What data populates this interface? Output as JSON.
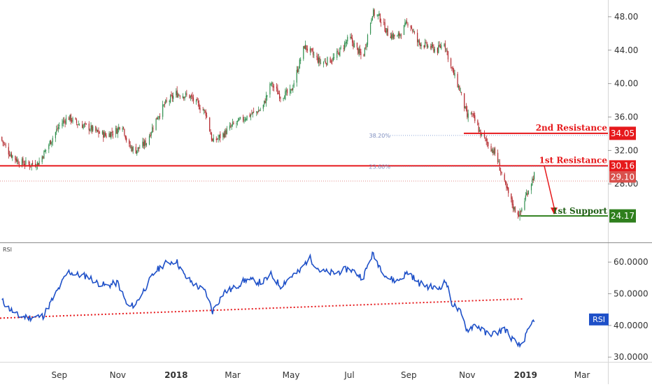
{
  "chart_data": [
    {
      "type": "candlestick",
      "title": "",
      "ylim": [
        21.0,
        50.0
      ],
      "y_ticks": [
        "48.00",
        "44.00",
        "40.00",
        "36.00",
        "32.00",
        "28.00"
      ],
      "x_ticks": [
        "Sep",
        "Nov",
        "2018",
        "Mar",
        "May",
        "Jul",
        "Sep",
        "Nov",
        "2019",
        "Mar"
      ],
      "close_path": {
        "dates": [
          "2017-07-01",
          "2017-07-10",
          "2017-07-20",
          "2017-08-01",
          "2017-08-10",
          "2017-08-20",
          "2017-09-01",
          "2017-09-10",
          "2017-09-20",
          "2017-10-01",
          "2017-10-10",
          "2017-10-20",
          "2017-11-01",
          "2017-11-05",
          "2017-11-12",
          "2017-11-20",
          "2017-12-01",
          "2017-12-10",
          "2017-12-20",
          "2018-01-01",
          "2018-01-15",
          "2018-02-01",
          "2018-02-08",
          "2018-02-20",
          "2018-03-01",
          "2018-03-15",
          "2018-04-01",
          "2018-04-10",
          "2018-04-20",
          "2018-05-01",
          "2018-05-15",
          "2018-06-01",
          "2018-06-15",
          "2018-07-01",
          "2018-07-15",
          "2018-07-25",
          "2018-08-01",
          "2018-08-10",
          "2018-08-20",
          "2018-09-01",
          "2018-09-10",
          "2018-09-20",
          "2018-10-01",
          "2018-10-08",
          "2018-10-15",
          "2018-10-25",
          "2018-11-01",
          "2018-11-05",
          "2018-11-15",
          "2018-12-01",
          "2018-12-10",
          "2018-12-20",
          "2018-12-26",
          "2019-01-01",
          "2019-01-10"
        ],
        "values": [
          33.6,
          31.8,
          30.7,
          30.3,
          30.5,
          32.5,
          35.0,
          36.0,
          35.2,
          34.8,
          34.2,
          33.8,
          34.5,
          35.5,
          32.5,
          32.0,
          33.0,
          35.5,
          37.5,
          38.8,
          38.5,
          36.5,
          33.0,
          34.0,
          35.0,
          36.0,
          37.0,
          40.0,
          38.5,
          39.0,
          44.5,
          42.5,
          43.0,
          45.5,
          43.0,
          48.5,
          48.0,
          46.0,
          45.5,
          47.5,
          45.0,
          44.5,
          44.0,
          45.0,
          42.0,
          39.0,
          36.0,
          36.5,
          34.0,
          31.5,
          28.0,
          25.0,
          24.3,
          26.5,
          29.1
        ]
      },
      "price_labels": [
        {
          "name": "2nd Resistance",
          "value": 34.05,
          "label": "34.05",
          "color": "#e6191c"
        },
        {
          "name": "1st Resistance",
          "value": 30.16,
          "label": "30.16",
          "color": "#e6191c"
        },
        {
          "name": "last",
          "value": 29.1,
          "label": "29.10",
          "color": "#d9514d"
        },
        {
          "name": "1st Support",
          "value": 24.17,
          "label": "24.17",
          "color": "#2f7f1d"
        }
      ],
      "annotations": {
        "resistance2": "2nd Resistance",
        "resistance1": "1st Resistance",
        "support1": "1st Support",
        "fib1": "38.20%",
        "fib2": "23.60%"
      },
      "colors": {
        "up": "#2f8f4e",
        "down": "#b3262b",
        "resistance": "#e6191c",
        "support": "#2f7f1d"
      }
    },
    {
      "type": "line",
      "title": "RSI",
      "ylim": [
        28.5,
        66.0
      ],
      "y_ticks": [
        "60.0000",
        "50.0000",
        "40.0000",
        "30.0000"
      ],
      "badge": "RSI",
      "series": [
        {
          "name": "RSI",
          "color": "#1e50c8",
          "x": [
            "2017-07-01",
            "2017-07-10",
            "2017-07-20",
            "2017-08-01",
            "2017-08-15",
            "2017-09-01",
            "2017-09-10",
            "2017-09-20",
            "2017-10-01",
            "2017-10-10",
            "2017-10-20",
            "2017-11-01",
            "2017-11-12",
            "2017-11-20",
            "2017-12-01",
            "2017-12-10",
            "2017-12-20",
            "2018-01-01",
            "2018-01-10",
            "2018-01-20",
            "2018-02-01",
            "2018-02-08",
            "2018-02-20",
            "2018-03-01",
            "2018-03-15",
            "2018-04-01",
            "2018-04-10",
            "2018-04-20",
            "2018-05-01",
            "2018-05-10",
            "2018-05-20",
            "2018-06-01",
            "2018-06-15",
            "2018-07-01",
            "2018-07-15",
            "2018-07-25",
            "2018-08-01",
            "2018-08-10",
            "2018-08-20",
            "2018-09-01",
            "2018-09-10",
            "2018-09-20",
            "2018-10-01",
            "2018-10-10",
            "2018-10-15",
            "2018-10-25",
            "2018-11-01",
            "2018-11-10",
            "2018-11-20",
            "2018-12-01",
            "2018-12-10",
            "2018-12-20",
            "2018-12-26",
            "2019-01-01",
            "2019-01-10"
          ],
          "values": [
            48.5,
            45.5,
            43.0,
            42.5,
            43.0,
            52.0,
            57.0,
            56.0,
            55.5,
            53.5,
            52.5,
            53.5,
            45.5,
            47.0,
            52.5,
            57.0,
            59.5,
            60.5,
            55.5,
            53.0,
            50.5,
            44.5,
            50.5,
            51.5,
            54.5,
            53.5,
            56.0,
            52.5,
            55.5,
            57.0,
            61.5,
            57.0,
            56.5,
            58.0,
            55.0,
            62.5,
            59.0,
            55.0,
            54.0,
            57.0,
            53.5,
            52.5,
            51.5,
            54.0,
            47.5,
            44.0,
            38.5,
            40.5,
            37.5,
            37.5,
            39.0,
            35.0,
            33.5,
            36.5,
            42.0
          ]
        }
      ],
      "trendline": {
        "x": [
          "2017-07-01",
          "2019-01-01"
        ],
        "values": [
          42.3,
          48.4
        ],
        "color": "#e6191c"
      },
      "right_label": {
        "value": 42.0
      }
    }
  ]
}
